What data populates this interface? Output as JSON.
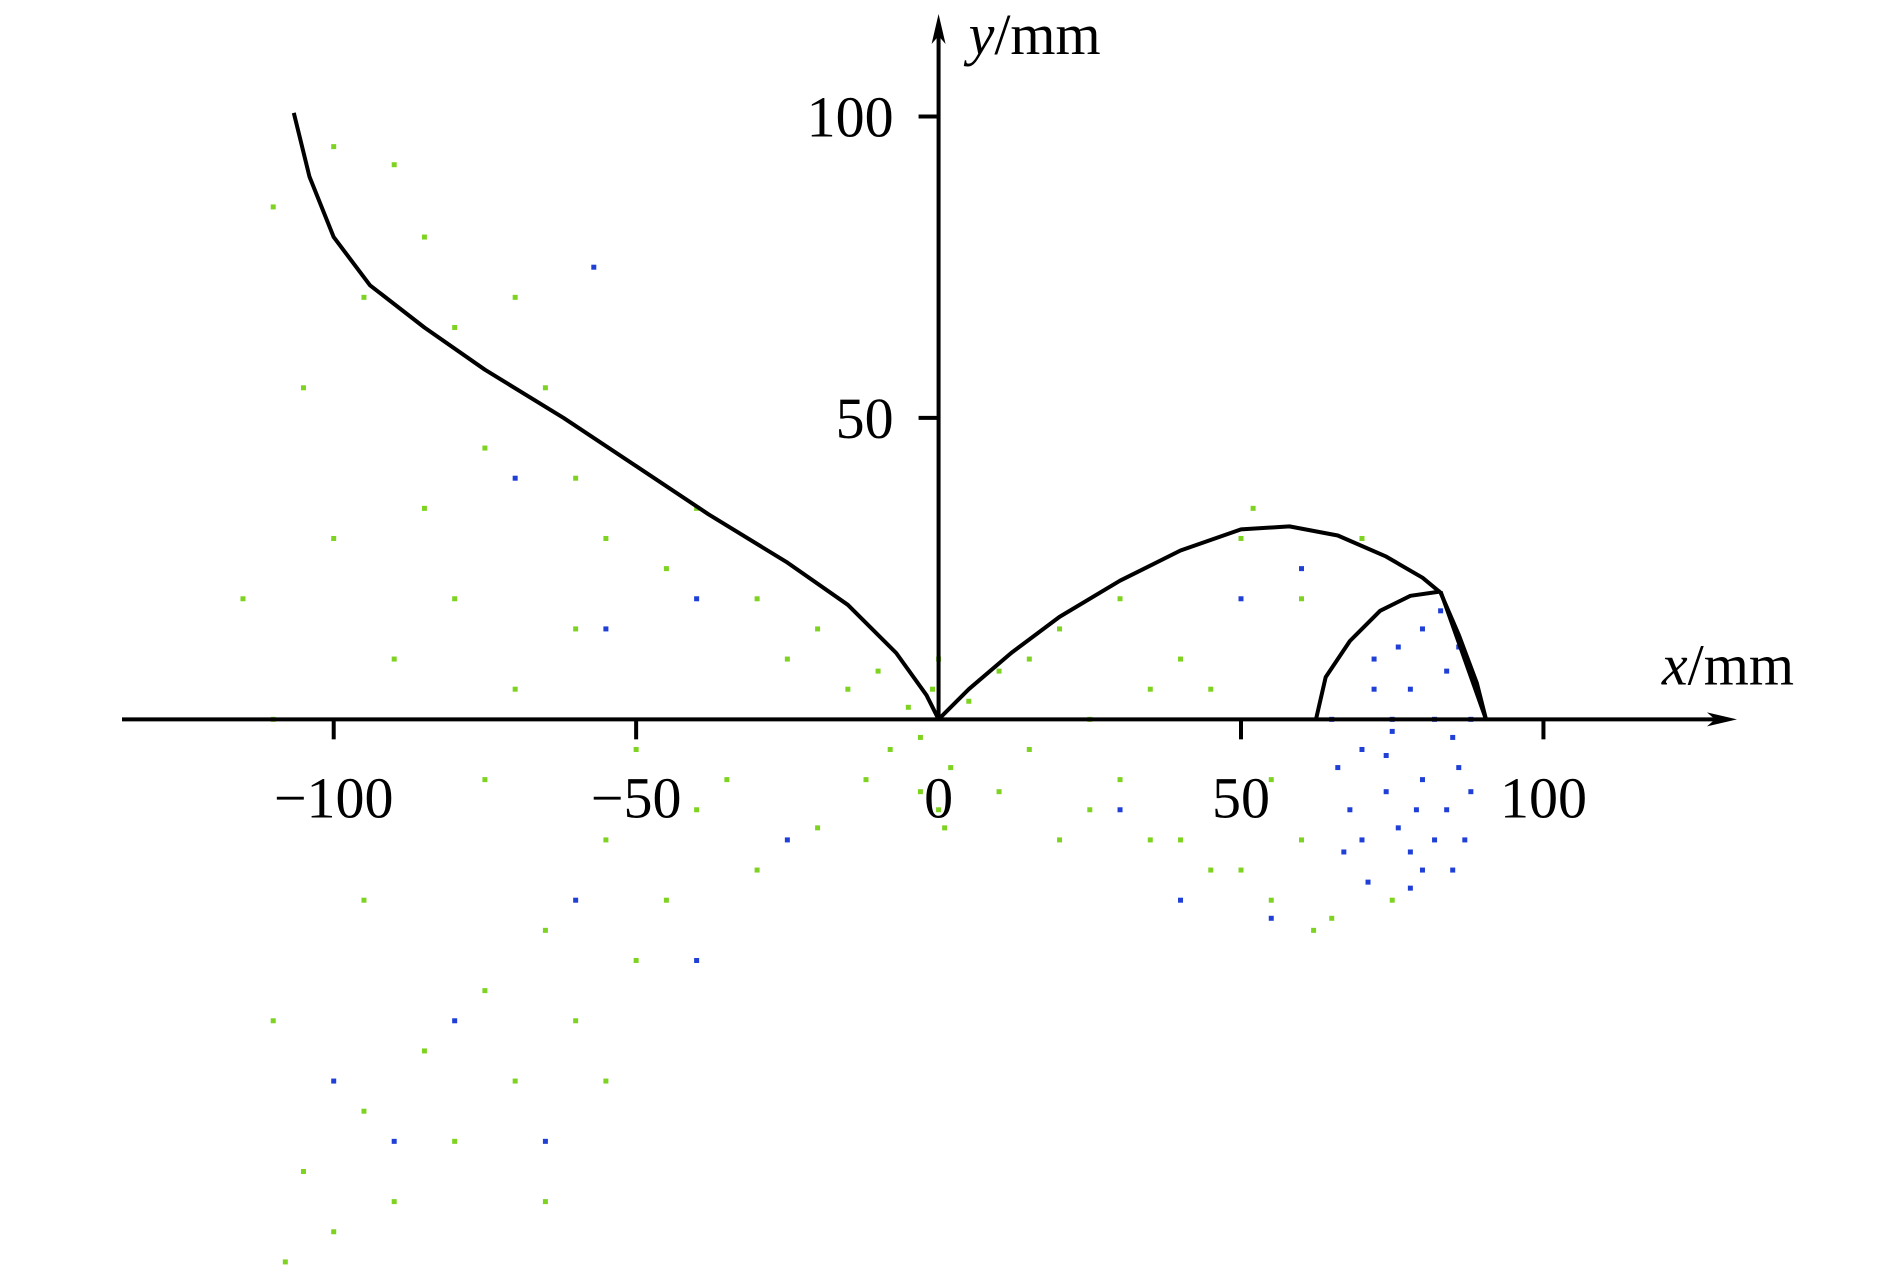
{
  "chart_data": {
    "type": "scatter",
    "x_label": "x/mm",
    "y_label": "y/mm",
    "xlim": [
      -135,
      132
    ],
    "ylim": [
      -93,
      117
    ],
    "xticks": [
      {
        "value": -100,
        "label": "−100"
      },
      {
        "value": -50,
        "label": "−50"
      },
      0,
      50,
      100
    ],
    "yticks": [
      50,
      100
    ],
    "series": [
      {
        "type": "scatter",
        "color": "#7ed321",
        "x": [
          -110,
          -100,
          -90,
          -95,
          -85,
          -80,
          -105,
          -75,
          -70,
          -60,
          -65,
          -55,
          -45,
          -40,
          -30,
          -25,
          -20,
          -15,
          -10,
          -5,
          -3,
          -8,
          -12,
          -20,
          -30,
          -35,
          -45,
          -50,
          -55,
          -60,
          -65,
          -70,
          -75,
          -80,
          -85,
          -90,
          -95,
          -100,
          -105,
          -108,
          -110,
          -115,
          -110,
          -100,
          -90,
          -80,
          -70,
          -60,
          -50,
          -40,
          -85,
          -95,
          -75,
          -65,
          -55,
          0,
          0,
          1,
          -1,
          2,
          -3,
          5,
          10,
          15,
          10,
          20,
          25,
          30,
          35,
          40,
          45,
          50,
          55,
          60,
          65,
          70,
          75,
          45,
          55,
          35,
          25,
          60,
          50,
          40,
          30,
          52,
          62,
          20,
          15
        ],
        "y": [
          85,
          95,
          92,
          70,
          80,
          65,
          55,
          45,
          70,
          40,
          55,
          30,
          25,
          35,
          20,
          10,
          15,
          5,
          8,
          2,
          -3,
          -5,
          -10,
          -18,
          -25,
          -10,
          -30,
          -40,
          -20,
          -50,
          -35,
          -60,
          -45,
          -70,
          -55,
          -80,
          -65,
          -85,
          -75,
          -90,
          -50,
          20,
          0,
          30,
          10,
          20,
          5,
          15,
          -5,
          -15,
          35,
          -30,
          -10,
          -80,
          -60,
          10,
          -15,
          -18,
          5,
          -8,
          -12,
          3,
          8,
          -5,
          -12,
          15,
          -15,
          20,
          -20,
          10,
          -25,
          30,
          -30,
          20,
          -33,
          30,
          -30,
          5,
          -10,
          5,
          0,
          -20,
          -25,
          -20,
          -10,
          35,
          -35,
          -20,
          10
        ]
      },
      {
        "type": "scatter",
        "color": "#1f3fd6",
        "x": [
          65,
          66,
          68,
          70,
          72,
          74,
          76,
          78,
          80,
          82,
          84,
          86,
          88,
          89,
          86,
          83,
          80,
          76,
          72,
          70,
          75,
          78,
          82,
          85,
          80,
          74,
          84,
          78,
          85,
          88,
          67,
          71,
          75,
          79,
          87,
          -80,
          -60,
          -40,
          -90,
          -70,
          -55,
          -57,
          -40,
          -25,
          40,
          55,
          60,
          30,
          50,
          -100,
          -65
        ],
        "y": [
          0,
          -8,
          -15,
          -20,
          5,
          -12,
          -18,
          -22,
          -25,
          -20,
          -15,
          -8,
          0,
          5,
          12,
          18,
          15,
          12,
          10,
          -5,
          -2,
          5,
          0,
          -3,
          -10,
          -6,
          8,
          -28,
          -25,
          -12,
          -22,
          -27,
          0,
          -15,
          -20,
          -50,
          -30,
          -40,
          -70,
          40,
          15,
          75,
          20,
          -20,
          -30,
          -33,
          25,
          -15,
          20,
          -60,
          -70
        ]
      },
      {
        "type": "line",
        "color": "#000000",
        "x": [
          -106.6,
          -104,
          -100,
          -94,
          -85,
          -75,
          -62,
          -50,
          -38,
          -25,
          -15,
          -7,
          -2,
          0
        ],
        "y": [
          100.6,
          90,
          80,
          72,
          65,
          58,
          50,
          42,
          34,
          26,
          19,
          11,
          4,
          0
        ]
      },
      {
        "type": "line",
        "color": "#000000",
        "x": [
          0,
          5,
          12,
          20,
          30,
          40,
          50,
          58,
          66,
          74,
          80,
          83,
          86,
          89,
          90.5
        ],
        "y": [
          0,
          5,
          11,
          17,
          23,
          28,
          31.5,
          32,
          30.5,
          27,
          23.5,
          21,
          14,
          6,
          0
        ]
      },
      {
        "type": "line",
        "color": "#000000",
        "x": [
          62.4,
          64,
          68,
          73,
          78,
          83
        ],
        "y": [
          0,
          7,
          13,
          18,
          20.5,
          21.2
        ]
      },
      {
        "type": "line",
        "color": "#000000",
        "x": [
          83,
          90.5
        ],
        "y": [
          21.2,
          0
        ]
      }
    ]
  }
}
